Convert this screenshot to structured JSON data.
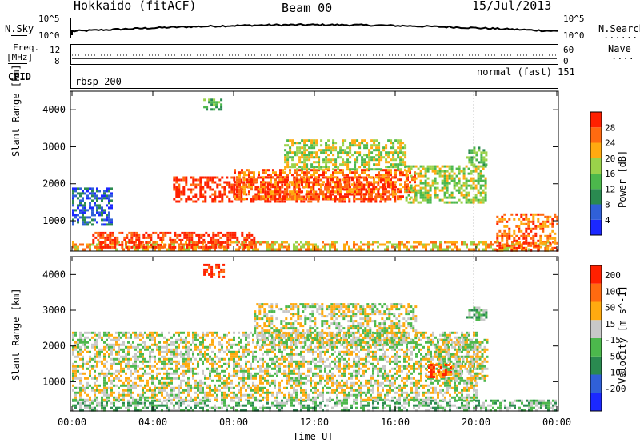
{
  "header": {
    "station": "Hokkaido (fitACF)",
    "beam": "Beam 00",
    "date": "15/Jul/2013"
  },
  "panels": {
    "nsky": {
      "label": "N.Sky",
      "left_ticks": [
        "10^5",
        "10^0"
      ],
      "right_ticks": [
        "10^5",
        "10^0"
      ],
      "right_label": "N.Search",
      "right_marker": "......"
    },
    "freq": {
      "label_line1": "Freq.",
      "label_line2": "[MHz]",
      "left_ticks": [
        "12",
        "8"
      ],
      "right_ticks": [
        "60",
        "0"
      ],
      "right_label": "Nave",
      "right_marker": "...."
    },
    "cpid": {
      "label": "CPID",
      "segments": [
        "rbsp 200",
        "normal (fast) 151"
      ]
    }
  },
  "chart_data": [
    {
      "type": "heatmap",
      "name": "power",
      "ylabel": "Slant Range [km]",
      "yticks": [
        1000,
        2000,
        3000,
        4000
      ],
      "ylim": [
        180,
        4500
      ],
      "xlim": [
        0,
        24
      ],
      "colorbar": {
        "label": "Power [dB]",
        "ticks": [
          "4",
          "8",
          "12",
          "16",
          "20",
          "24",
          "28"
        ],
        "colors": [
          "#1b28ff",
          "#3060d8",
          "#2a8a50",
          "#4cb84c",
          "#9ad24a",
          "#ffaa10",
          "#ff6a10",
          "#ff2000"
        ],
        "range": [
          0,
          32
        ]
      },
      "features": [
        {
          "t0": 0.0,
          "t1": 24.0,
          "r0": 200,
          "r1": 450,
          "level": 5
        },
        {
          "t0": 1.0,
          "t1": 9.0,
          "r0": 300,
          "r1": 700,
          "level": 7
        },
        {
          "t0": 5.0,
          "t1": 16.0,
          "r0": 1500,
          "r1": 2200,
          "level": 7
        },
        {
          "t0": 8.0,
          "t1": 17.0,
          "r0": 1600,
          "r1": 2400,
          "level": 6
        },
        {
          "t0": 10.5,
          "t1": 16.5,
          "r0": 2400,
          "r1": 3200,
          "level": 4
        },
        {
          "t0": 16.5,
          "t1": 20.5,
          "r0": 1500,
          "r1": 2500,
          "level": 4
        },
        {
          "t0": 19.5,
          "t1": 20.5,
          "r0": 2500,
          "r1": 3000,
          "level": 3
        },
        {
          "t0": 21.0,
          "t1": 24.0,
          "r0": 200,
          "r1": 1200,
          "level": 6
        },
        {
          "t0": 0.0,
          "t1": 2.0,
          "r0": 900,
          "r1": 1900,
          "level": 1
        },
        {
          "t0": 6.5,
          "t1": 7.4,
          "r0": 4000,
          "r1": 4300,
          "level": 3
        }
      ]
    },
    {
      "type": "heatmap",
      "name": "velocity",
      "ylabel": "Slant Range [km]",
      "yticks": [
        1000,
        2000,
        3000,
        4000
      ],
      "ylim": [
        180,
        4500
      ],
      "xlim": [
        0,
        24
      ],
      "xticks": [
        "00:00",
        "04:00",
        "08:00",
        "12:00",
        "16:00",
        "20:00",
        "00:00"
      ],
      "xlabel": "Time UT",
      "colorbar": {
        "label": "Velocity [m s^-1]",
        "ticks": [
          "200",
          "100",
          "50",
          "15",
          "-15",
          "-50",
          "-100",
          "-200"
        ],
        "colors": [
          "#1b28ff",
          "#3060d8",
          "#2a8a50",
          "#4cb84c",
          "#c8c8c8",
          "#ffaa10",
          "#ff6a10",
          "#ff2000"
        ],
        "range": [
          -250,
          250
        ]
      },
      "features": [
        {
          "t0": 0.0,
          "t1": 24.0,
          "r0": 200,
          "r1": 500,
          "level": 3
        },
        {
          "t0": 0.0,
          "t1": 20.0,
          "r0": 500,
          "r1": 2400,
          "level": 4
        },
        {
          "t0": 9.0,
          "t1": 17.0,
          "r0": 2000,
          "r1": 3200,
          "level": 4
        },
        {
          "t0": 18.0,
          "t1": 20.5,
          "r0": 1000,
          "r1": 2200,
          "level": 4
        },
        {
          "t0": 17.5,
          "t1": 18.7,
          "r0": 1100,
          "r1": 1500,
          "level": 6
        },
        {
          "t0": 6.5,
          "t1": 7.5,
          "r0": 3900,
          "r1": 4300,
          "level": 7
        },
        {
          "t0": 19.5,
          "t1": 20.5,
          "r0": 2700,
          "r1": 3100,
          "level": 3
        }
      ]
    }
  ]
}
